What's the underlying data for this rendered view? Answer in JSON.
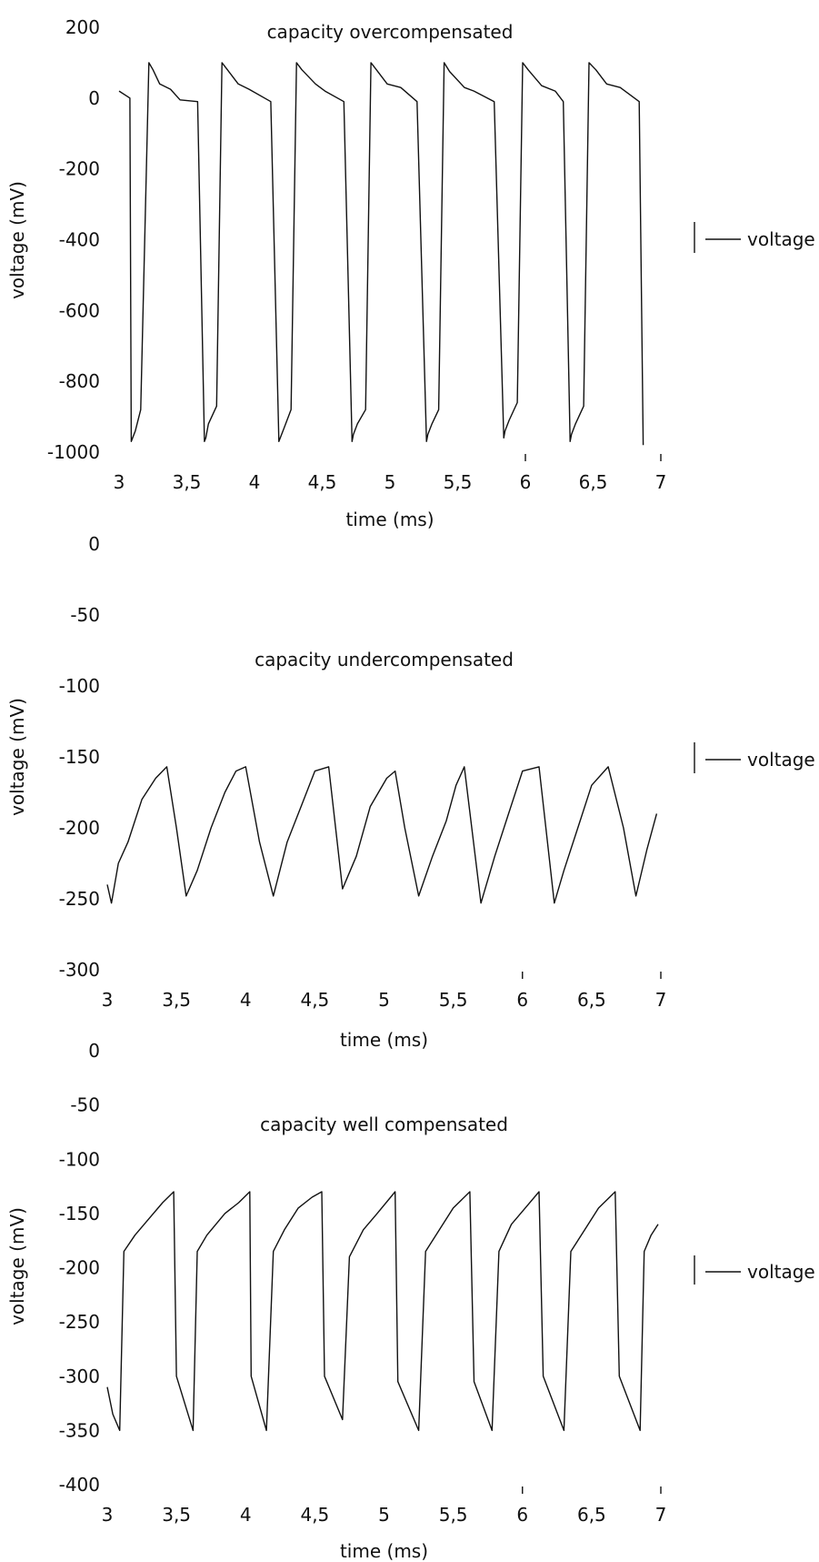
{
  "chart_data": [
    {
      "type": "line",
      "title": "capacity overcompensated",
      "xlabel": "time (ms)",
      "ylabel": "voltage (mV)",
      "xlim": [
        3,
        7
      ],
      "ylim": [
        -1000,
        200
      ],
      "x_ticks": [
        "3",
        "3,5",
        "4",
        "4,5",
        "5",
        "5,5",
        "6",
        "6,5",
        "7"
      ],
      "y_ticks": [
        "200",
        "0",
        "-200",
        "-400",
        "-600",
        "-800",
        "-1000"
      ],
      "grid": false,
      "legend_position": "right",
      "series": [
        {
          "name": "voltage",
          "x": [
            3.0,
            3.08,
            3.09,
            3.12,
            3.16,
            3.22,
            3.25,
            3.3,
            3.38,
            3.45,
            3.58,
            3.63,
            3.64,
            3.66,
            3.72,
            3.76,
            3.8,
            3.88,
            3.96,
            4.12,
            4.18,
            4.19,
            4.22,
            4.27,
            4.31,
            4.35,
            4.45,
            4.52,
            4.66,
            4.72,
            4.73,
            4.76,
            4.82,
            4.86,
            4.9,
            4.98,
            5.08,
            5.2,
            5.27,
            5.28,
            5.31,
            5.36,
            5.4,
            5.44,
            5.55,
            5.62,
            5.77,
            5.84,
            5.85,
            5.88,
            5.94,
            5.98,
            6.02,
            6.12,
            6.22,
            6.28,
            6.33,
            6.34,
            6.37,
            6.43,
            6.47,
            6.52,
            6.6,
            6.7,
            6.84,
            6.87
          ],
          "y": [
            20,
            0,
            -970,
            -940,
            -880,
            100,
            80,
            40,
            25,
            -5,
            -10,
            -970,
            -960,
            -920,
            -870,
            100,
            80,
            40,
            25,
            -10,
            -970,
            -960,
            -930,
            -880,
            100,
            80,
            40,
            20,
            -10,
            -970,
            -950,
            -920,
            -880,
            100,
            80,
            40,
            30,
            -10,
            -970,
            -950,
            -920,
            -880,
            100,
            75,
            30,
            20,
            -10,
            -960,
            -940,
            -910,
            -860,
            100,
            80,
            35,
            20,
            -10,
            -970,
            -950,
            -920,
            -870,
            100,
            80,
            40,
            30,
            -10,
            -980
          ]
        }
      ]
    },
    {
      "type": "line",
      "title": "capacity undercompensated",
      "xlabel": "time (ms)",
      "ylabel": "voltage (mV)",
      "xlim": [
        3,
        7
      ],
      "ylim": [
        -300,
        0
      ],
      "x_ticks": [
        "3",
        "3,5",
        "4",
        "4,5",
        "5",
        "5,5",
        "6",
        "6,5",
        "7"
      ],
      "y_ticks": [
        "0",
        "-50",
        "-100",
        "-150",
        "-200",
        "-250",
        "-300"
      ],
      "grid": false,
      "legend_position": "right",
      "series": [
        {
          "name": "voltage",
          "x": [
            3.0,
            3.03,
            3.08,
            3.15,
            3.25,
            3.35,
            3.43,
            3.5,
            3.57,
            3.65,
            3.75,
            3.85,
            3.93,
            4.0,
            4.1,
            4.2,
            4.3,
            4.4,
            4.5,
            4.6,
            4.65,
            4.7,
            4.8,
            4.9,
            5.02,
            5.08,
            5.15,
            5.25,
            5.35,
            5.45,
            5.52,
            5.58,
            5.7,
            5.8,
            5.9,
            6.0,
            6.12,
            6.23,
            6.3,
            6.4,
            6.5,
            6.62,
            6.73,
            6.82,
            6.9,
            6.97
          ],
          "y": [
            -240,
            -253,
            -225,
            -210,
            -180,
            -165,
            -157,
            -200,
            -248,
            -230,
            -200,
            -175,
            -160,
            -157,
            -210,
            -248,
            -210,
            -185,
            -160,
            -157,
            -200,
            -243,
            -220,
            -185,
            -165,
            -160,
            -200,
            -248,
            -220,
            -195,
            -170,
            -157,
            -253,
            -220,
            -190,
            -160,
            -157,
            -253,
            -230,
            -200,
            -170,
            -157,
            -200,
            -248,
            -215,
            -190
          ]
        }
      ]
    },
    {
      "type": "line",
      "title": "capacity well compensated",
      "xlabel": "time (ms)",
      "ylabel": "voltage (mV)",
      "xlim": [
        3,
        7
      ],
      "ylim": [
        -400,
        0
      ],
      "x_ticks": [
        "3",
        "3,5",
        "4",
        "4,5",
        "5",
        "5,5",
        "6",
        "6,5",
        "7"
      ],
      "y_ticks": [
        "0",
        "-50",
        "-100",
        "-150",
        "-200",
        "-250",
        "-300",
        "-350",
        "-400"
      ],
      "grid": false,
      "legend_position": "right",
      "series": [
        {
          "name": "voltage",
          "x": [
            3.0,
            3.04,
            3.09,
            3.12,
            3.2,
            3.3,
            3.4,
            3.48,
            3.5,
            3.62,
            3.65,
            3.72,
            3.85,
            3.95,
            4.03,
            4.04,
            4.15,
            4.2,
            4.28,
            4.38,
            4.48,
            4.55,
            4.57,
            4.7,
            4.75,
            4.85,
            4.95,
            5.08,
            5.1,
            5.25,
            5.3,
            5.4,
            5.5,
            5.62,
            5.65,
            5.78,
            5.83,
            5.92,
            6.02,
            6.12,
            6.15,
            6.3,
            6.35,
            6.45,
            6.55,
            6.67,
            6.7,
            6.85,
            6.88,
            6.93,
            6.98
          ],
          "y": [
            -310,
            -335,
            -350,
            -185,
            -170,
            -155,
            -140,
            -130,
            -300,
            -350,
            -185,
            -170,
            -150,
            -140,
            -130,
            -300,
            -350,
            -185,
            -165,
            -145,
            -135,
            -130,
            -300,
            -340,
            -190,
            -165,
            -150,
            -130,
            -305,
            -350,
            -185,
            -165,
            -145,
            -130,
            -305,
            -350,
            -185,
            -160,
            -145,
            -130,
            -300,
            -350,
            -185,
            -165,
            -145,
            -130,
            -300,
            -350,
            -185,
            -170,
            -160
          ]
        }
      ]
    }
  ]
}
